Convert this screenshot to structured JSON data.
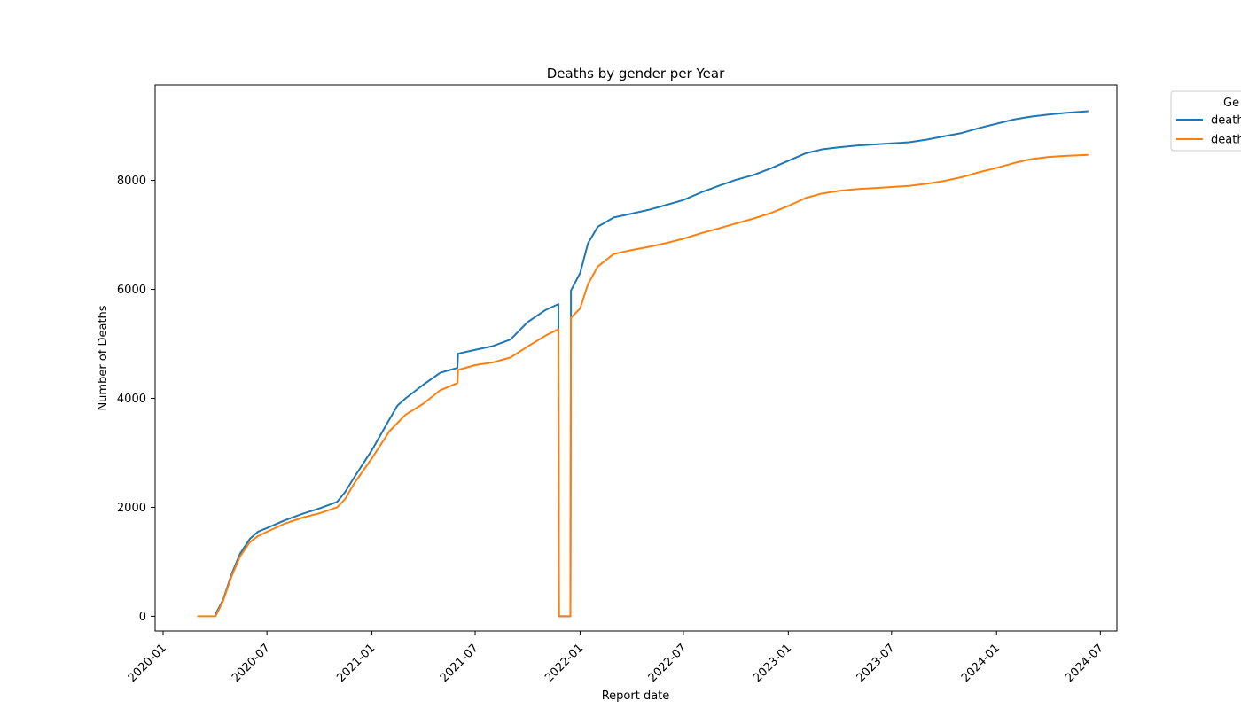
{
  "chart_data": {
    "type": "line",
    "title": "Deaths by gender per Year",
    "xlabel": "Report date",
    "ylabel": "Number of Deaths",
    "xlim": [
      "2019-12-18",
      "2024-07-30"
    ],
    "ylim": [
      -270,
      9750
    ],
    "xticks": [
      "2020-01",
      "2020-07",
      "2021-01",
      "2021-07",
      "2022-01",
      "2022-07",
      "2023-01",
      "2023-07",
      "2024-01",
      "2024-07"
    ],
    "yticks": [
      0,
      2000,
      4000,
      6000,
      8000
    ],
    "grid": false,
    "legend": {
      "title": "Ge",
      "position": "outside-top-right",
      "clipped": true
    },
    "series": [
      {
        "name": "death",
        "color": "#1f77b4",
        "points": [
          [
            "2020-04-02",
            0
          ],
          [
            "2020-04-03",
            60
          ],
          [
            "2020-04-15",
            300
          ],
          [
            "2020-05-01",
            800
          ],
          [
            "2020-05-15",
            1150
          ],
          [
            "2020-06-01",
            1420
          ],
          [
            "2020-06-15",
            1550
          ],
          [
            "2020-07-01",
            1620
          ],
          [
            "2020-08-01",
            1760
          ],
          [
            "2020-09-01",
            1880
          ],
          [
            "2020-10-01",
            1980
          ],
          [
            "2020-11-01",
            2100
          ],
          [
            "2020-11-15",
            2280
          ],
          [
            "2020-12-01",
            2550
          ],
          [
            "2021-01-01",
            3050
          ],
          [
            "2021-02-01",
            3620
          ],
          [
            "2021-02-15",
            3870
          ],
          [
            "2021-03-01",
            4000
          ],
          [
            "2021-04-01",
            4250
          ],
          [
            "2021-05-01",
            4470
          ],
          [
            "2021-05-31",
            4560
          ],
          [
            "2021-06-01",
            4820
          ],
          [
            "2021-07-01",
            4890
          ],
          [
            "2021-08-01",
            4960
          ],
          [
            "2021-09-01",
            5080
          ],
          [
            "2021-10-01",
            5400
          ],
          [
            "2021-11-01",
            5620
          ],
          [
            "2021-11-24",
            5730
          ],
          [
            "2021-11-25",
            0
          ],
          [
            "2021-12-15",
            0
          ],
          [
            "2021-12-16",
            5980
          ],
          [
            "2022-01-01",
            6300
          ],
          [
            "2022-01-15",
            6850
          ],
          [
            "2022-02-01",
            7150
          ],
          [
            "2022-03-01",
            7320
          ],
          [
            "2022-04-01",
            7390
          ],
          [
            "2022-05-01",
            7460
          ],
          [
            "2022-06-01",
            7550
          ],
          [
            "2022-07-01",
            7640
          ],
          [
            "2022-08-01",
            7780
          ],
          [
            "2022-09-01",
            7900
          ],
          [
            "2022-10-01",
            8010
          ],
          [
            "2022-11-01",
            8100
          ],
          [
            "2022-12-01",
            8220
          ],
          [
            "2023-01-01",
            8360
          ],
          [
            "2023-02-01",
            8500
          ],
          [
            "2023-03-01",
            8570
          ],
          [
            "2023-04-01",
            8610
          ],
          [
            "2023-05-01",
            8640
          ],
          [
            "2023-06-01",
            8660
          ],
          [
            "2023-07-01",
            8680
          ],
          [
            "2023-08-01",
            8700
          ],
          [
            "2023-09-01",
            8750
          ],
          [
            "2023-10-01",
            8810
          ],
          [
            "2023-11-01",
            8870
          ],
          [
            "2023-12-01",
            8960
          ],
          [
            "2024-01-01",
            9040
          ],
          [
            "2024-02-01",
            9120
          ],
          [
            "2024-03-01",
            9170
          ],
          [
            "2024-04-01",
            9210
          ],
          [
            "2024-05-01",
            9240
          ],
          [
            "2024-06-10",
            9270
          ]
        ]
      },
      {
        "name": "death",
        "color": "#ff7f0e",
        "points": [
          [
            "2020-03-01",
            0
          ],
          [
            "2020-04-02",
            0
          ],
          [
            "2020-04-15",
            280
          ],
          [
            "2020-05-01",
            760
          ],
          [
            "2020-05-15",
            1100
          ],
          [
            "2020-06-01",
            1360
          ],
          [
            "2020-06-15",
            1470
          ],
          [
            "2020-07-01",
            1550
          ],
          [
            "2020-08-01",
            1700
          ],
          [
            "2020-09-01",
            1810
          ],
          [
            "2020-10-01",
            1890
          ],
          [
            "2020-11-01",
            2000
          ],
          [
            "2020-11-15",
            2150
          ],
          [
            "2020-12-01",
            2440
          ],
          [
            "2021-01-01",
            2900
          ],
          [
            "2021-02-01",
            3400
          ],
          [
            "2021-03-01",
            3700
          ],
          [
            "2021-04-01",
            3900
          ],
          [
            "2021-05-01",
            4150
          ],
          [
            "2021-05-31",
            4280
          ],
          [
            "2021-06-01",
            4520
          ],
          [
            "2021-07-01",
            4610
          ],
          [
            "2021-08-01",
            4660
          ],
          [
            "2021-09-01",
            4750
          ],
          [
            "2021-10-01",
            4950
          ],
          [
            "2021-11-01",
            5150
          ],
          [
            "2021-11-24",
            5270
          ],
          [
            "2021-11-25",
            0
          ],
          [
            "2021-12-15",
            0
          ],
          [
            "2021-12-16",
            5480
          ],
          [
            "2022-01-01",
            5650
          ],
          [
            "2022-01-15",
            6100
          ],
          [
            "2022-02-01",
            6420
          ],
          [
            "2022-03-01",
            6650
          ],
          [
            "2022-04-01",
            6720
          ],
          [
            "2022-05-01",
            6780
          ],
          [
            "2022-06-01",
            6850
          ],
          [
            "2022-07-01",
            6930
          ],
          [
            "2022-08-01",
            7030
          ],
          [
            "2022-09-01",
            7120
          ],
          [
            "2022-10-01",
            7210
          ],
          [
            "2022-11-01",
            7300
          ],
          [
            "2022-12-01",
            7400
          ],
          [
            "2023-01-01",
            7530
          ],
          [
            "2023-02-01",
            7680
          ],
          [
            "2023-03-01",
            7760
          ],
          [
            "2023-04-01",
            7810
          ],
          [
            "2023-05-01",
            7840
          ],
          [
            "2023-06-01",
            7860
          ],
          [
            "2023-07-01",
            7880
          ],
          [
            "2023-08-01",
            7900
          ],
          [
            "2023-09-01",
            7940
          ],
          [
            "2023-10-01",
            7990
          ],
          [
            "2023-11-01",
            8060
          ],
          [
            "2023-12-01",
            8150
          ],
          [
            "2024-01-01",
            8230
          ],
          [
            "2024-02-01",
            8320
          ],
          [
            "2024-03-01",
            8390
          ],
          [
            "2024-04-01",
            8430
          ],
          [
            "2024-05-01",
            8450
          ],
          [
            "2024-06-10",
            8470
          ]
        ]
      }
    ]
  }
}
